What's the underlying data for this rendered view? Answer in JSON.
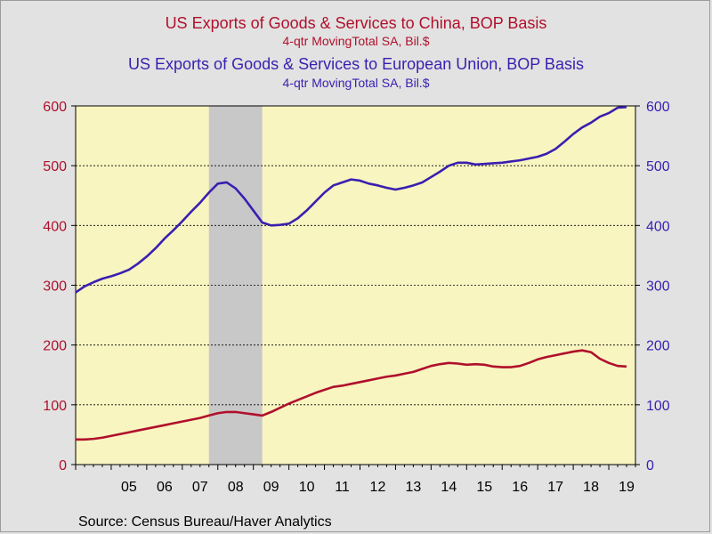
{
  "colors": {
    "china": "#b0102c",
    "eu": "#3a1fb0",
    "plot_bg": "#f8f5c0",
    "recession": "#c8c8c8",
    "page_bg": "#e2e2e2"
  },
  "titles": {
    "china_title": "US Exports of Goods & Services to China, BOP Basis",
    "china_units": "4-qtr MovingTotal     SA, Bil.$",
    "eu_title": "US Exports of Goods & Services to European Union, BOP Basis",
    "eu_units": "4-qtr MovingTotal     SA, Bil.$"
  },
  "source": "Source:  Census Bureau/Haver Analytics",
  "chart_data": {
    "type": "line",
    "x_labels": [
      "05",
      "06",
      "07",
      "08",
      "09",
      "10",
      "11",
      "12",
      "13",
      "14",
      "15",
      "16",
      "17",
      "18",
      "19"
    ],
    "x_range": [
      2004.0,
      2019.75
    ],
    "ylim": [
      0,
      600
    ],
    "left_ticks": [
      0,
      100,
      200,
      300,
      400,
      500,
      600
    ],
    "right_ticks": [
      0,
      100,
      200,
      300,
      400,
      500,
      600
    ],
    "grid": "horizontal dashed",
    "recession": [
      2007.75,
      2009.25
    ],
    "series": [
      {
        "name": "US Exports of Goods & Services to China, BOP Basis",
        "axis": "left",
        "x": [
          2004.0,
          2004.25,
          2004.5,
          2004.75,
          2005.0,
          2005.25,
          2005.5,
          2005.75,
          2006.0,
          2006.25,
          2006.5,
          2006.75,
          2007.0,
          2007.25,
          2007.5,
          2007.75,
          2008.0,
          2008.25,
          2008.5,
          2008.75,
          2009.0,
          2009.25,
          2009.5,
          2009.75,
          2010.0,
          2010.25,
          2010.5,
          2010.75,
          2011.0,
          2011.25,
          2011.5,
          2011.75,
          2012.0,
          2012.25,
          2012.5,
          2012.75,
          2013.0,
          2013.25,
          2013.5,
          2013.75,
          2014.0,
          2014.25,
          2014.5,
          2014.75,
          2015.0,
          2015.25,
          2015.5,
          2015.75,
          2016.0,
          2016.25,
          2016.5,
          2016.75,
          2017.0,
          2017.25,
          2017.5,
          2017.75,
          2018.0,
          2018.25,
          2018.5,
          2018.75,
          2019.0,
          2019.25,
          2019.5
        ],
        "values": [
          42,
          42,
          43,
          45,
          48,
          51,
          54,
          57,
          60,
          63,
          66,
          69,
          72,
          75,
          78,
          82,
          86,
          88,
          88,
          86,
          84,
          82,
          88,
          95,
          102,
          108,
          114,
          120,
          125,
          130,
          132,
          135,
          138,
          141,
          144,
          147,
          149,
          152,
          155,
          160,
          165,
          168,
          170,
          169,
          167,
          168,
          167,
          164,
          163,
          163,
          165,
          170,
          176,
          180,
          183,
          186,
          189,
          191,
          188,
          177,
          170,
          165,
          164
        ]
      },
      {
        "name": "US Exports of Goods & Services to European Union, BOP Basis",
        "axis": "right",
        "x": [
          2004.0,
          2004.25,
          2004.5,
          2004.75,
          2005.0,
          2005.25,
          2005.5,
          2005.75,
          2006.0,
          2006.25,
          2006.5,
          2006.75,
          2007.0,
          2007.25,
          2007.5,
          2007.75,
          2008.0,
          2008.25,
          2008.5,
          2008.75,
          2009.0,
          2009.25,
          2009.5,
          2009.75,
          2010.0,
          2010.25,
          2010.5,
          2010.75,
          2011.0,
          2011.25,
          2011.5,
          2011.75,
          2012.0,
          2012.25,
          2012.5,
          2012.75,
          2013.0,
          2013.25,
          2013.5,
          2013.75,
          2014.0,
          2014.25,
          2014.5,
          2014.75,
          2015.0,
          2015.25,
          2015.5,
          2015.75,
          2016.0,
          2016.25,
          2016.5,
          2016.75,
          2017.0,
          2017.25,
          2017.5,
          2017.75,
          2018.0,
          2018.25,
          2018.5,
          2018.75,
          2019.0,
          2019.25,
          2019.5
        ],
        "values": [
          288,
          298,
          305,
          311,
          315,
          320,
          326,
          336,
          348,
          362,
          378,
          392,
          407,
          423,
          438,
          455,
          470,
          472,
          462,
          445,
          425,
          405,
          400,
          401,
          403,
          412,
          425,
          440,
          455,
          467,
          472,
          477,
          475,
          470,
          467,
          463,
          460,
          463,
          467,
          472,
          481,
          490,
          500,
          505,
          505,
          502,
          503,
          504,
          505,
          507,
          509,
          512,
          515,
          520,
          528,
          540,
          553,
          564,
          572,
          582,
          588,
          597,
          598
        ]
      }
    ]
  }
}
